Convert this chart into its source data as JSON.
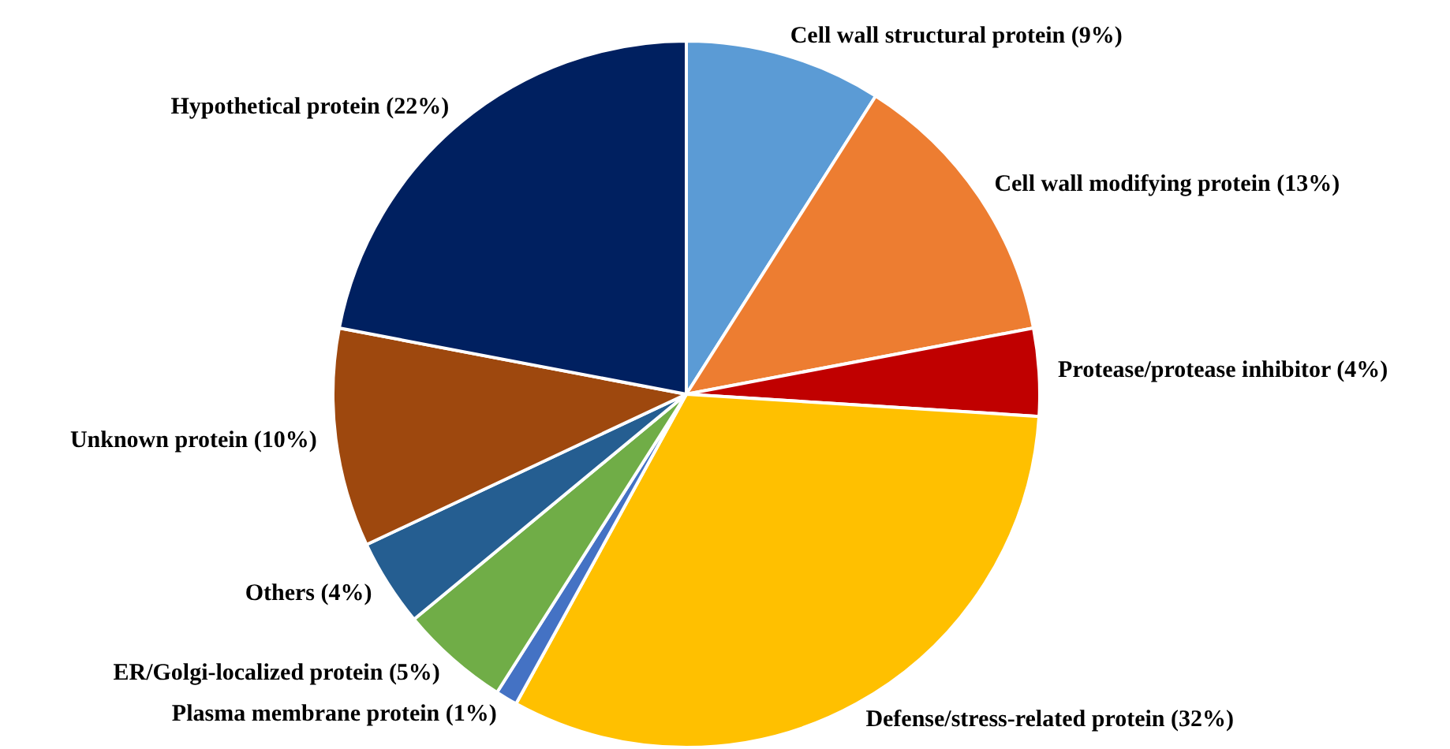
{
  "chart_data": {
    "type": "pie",
    "categories": [
      "Cell wall structural protein (9%)",
      "Cell wall modifying protein (13%)",
      "Protease/protease inhibitor (4%)",
      "Defense/stress-related protein (32%)",
      "Plasma membrane protein (1%)",
      "ER/Golgi-localized protein (5%)",
      "Others (4%)",
      "Unknown protein (10%)",
      "Hypothetical protein (22%)"
    ],
    "values": [
      9,
      13,
      4,
      32,
      1,
      5,
      4,
      10,
      22
    ],
    "colors": [
      "#5b9bd5",
      "#ed7d31",
      "#c00000",
      "#ffc000",
      "#4472c4",
      "#70ad47",
      "#255e91",
      "#9e480e",
      "#002060"
    ],
    "legend": false
  }
}
